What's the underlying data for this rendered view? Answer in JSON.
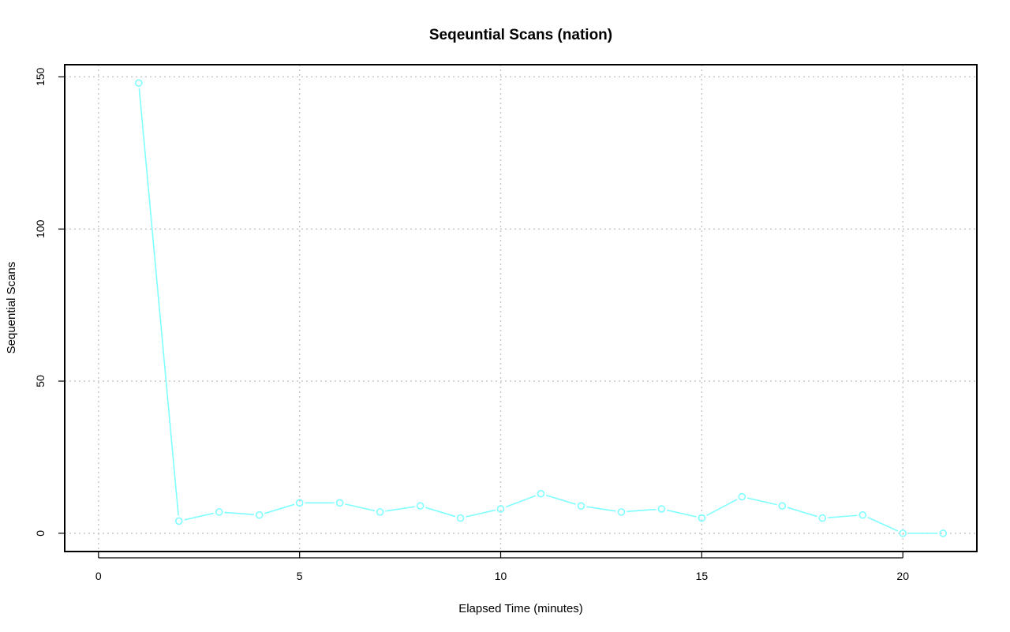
{
  "chart_data": {
    "type": "line",
    "title": "Seqeuntial Scans (nation)",
    "xlabel": "Elapsed Time (minutes)",
    "ylabel": "Sequential Scans",
    "xlim": [
      -0.84,
      21.84
    ],
    "ylim": [
      -6,
      154
    ],
    "x_ticks": [
      0,
      5,
      10,
      15,
      20
    ],
    "y_ticks": [
      0,
      50,
      100,
      150
    ],
    "grid": true,
    "series_color": "#80ffff",
    "series": [
      {
        "x": [
          1,
          2,
          3,
          4,
          5,
          6,
          7,
          8,
          9,
          10,
          11,
          12,
          13,
          14,
          15,
          16,
          17,
          18,
          19,
          20,
          21
        ],
        "values": [
          148,
          4,
          7,
          6,
          10,
          10,
          7,
          9,
          5,
          8,
          13,
          9,
          7,
          8,
          5,
          12,
          9,
          5,
          6,
          0,
          0
        ]
      }
    ]
  }
}
